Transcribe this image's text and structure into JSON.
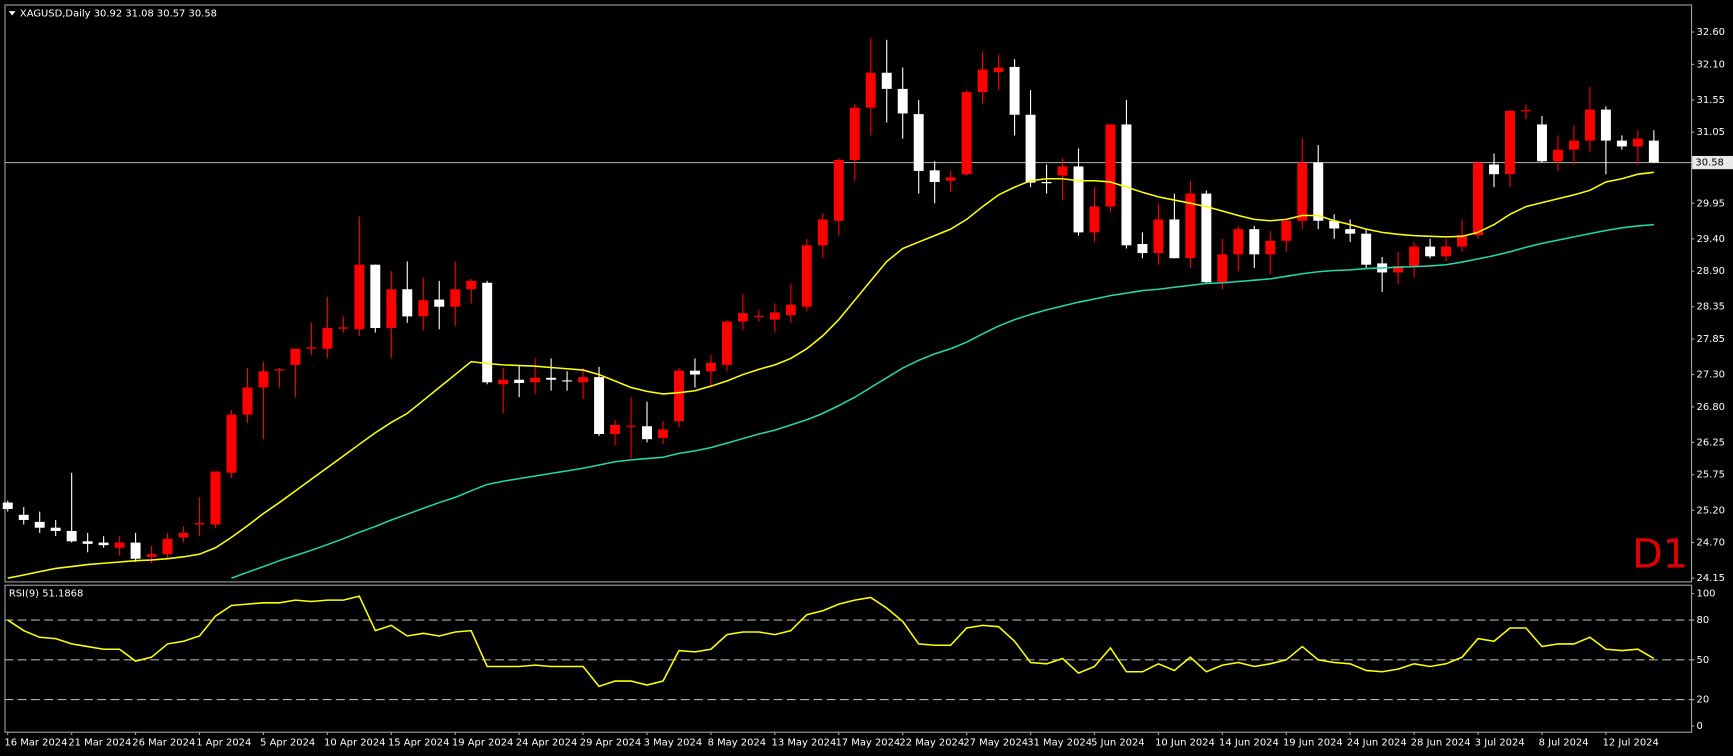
{
  "chart_data": [
    {
      "type": "candlestick",
      "title": "XAGUSD,Daily  30.92 31.08 30.57 30.58",
      "annotation": "D1",
      "last_price": 30.58,
      "up_color": "#ff0000",
      "down_color": "#ffffff",
      "categories": [
        "16 Mar 2024",
        null,
        null,
        null,
        "21 Mar 2024",
        null,
        null,
        null,
        "26 Mar 2024",
        null,
        null,
        null,
        "1 Apr 2024",
        null,
        null,
        null,
        "5 Apr 2024",
        null,
        null,
        null,
        "10 Apr 2024",
        null,
        null,
        null,
        "15 Apr 2024",
        null,
        null,
        null,
        "19 Apr 2024",
        null,
        null,
        null,
        "24 Apr 2024",
        null,
        null,
        null,
        "29 Apr 2024",
        null,
        null,
        null,
        "3 May 2024",
        null,
        null,
        null,
        "8 May 2024",
        null,
        null,
        null,
        "13 May 2024",
        null,
        null,
        null,
        "17 May 2024",
        null,
        null,
        null,
        "22 May 2024",
        null,
        null,
        null,
        "27 May 2024",
        null,
        null,
        null,
        "31 May 2024",
        null,
        null,
        null,
        "5 Jun 2024",
        null,
        null,
        null,
        "10 Jun 2024",
        null,
        null,
        null,
        "14 Jun 2024",
        null,
        null,
        null,
        "19 Jun 2024",
        null,
        null,
        null,
        "24 Jun 2024",
        null,
        null,
        null,
        "28 Jun 2024",
        null,
        null,
        null,
        "3 Jul 2024",
        null,
        null,
        null,
        "8 Jul 2024",
        null,
        null,
        null,
        "12 Jul 2024",
        null,
        null,
        null
      ],
      "open": [
        25.32,
        25.13,
        25.02,
        24.93,
        24.88,
        24.72,
        24.7,
        24.62,
        24.7,
        24.48,
        24.52,
        24.78,
        24.98,
        24.98,
        25.78,
        26.68,
        27.1,
        27.36,
        27.45,
        27.7,
        27.7,
        28.01,
        28.0,
        29.0,
        28.02,
        28.62,
        28.2,
        28.46,
        28.35,
        28.62,
        28.72,
        27.15,
        27.22,
        27.18,
        27.25,
        27.21,
        27.18,
        27.26,
        26.38,
        26.5,
        26.5,
        26.32,
        26.58,
        27.36,
        27.35,
        27.45,
        28.12,
        28.2,
        28.15,
        28.22,
        28.35,
        29.3,
        29.68,
        30.62,
        31.43,
        31.97,
        31.72,
        31.33,
        30.46,
        30.3,
        30.4,
        31.67,
        31.98,
        32.06,
        31.32,
        30.28,
        30.38,
        30.52,
        29.5,
        29.9,
        31.17,
        29.32,
        29.18,
        29.7,
        29.1,
        30.1,
        28.73,
        29.16,
        29.55,
        29.16,
        29.37,
        29.68,
        30.58,
        29.68,
        29.55,
        29.48,
        29.02,
        28.88,
        28.98,
        29.28,
        29.13,
        29.28,
        29.46,
        30.55,
        30.4,
        31.38,
        31.17,
        30.6,
        30.78,
        30.92,
        31.4,
        30.92,
        30.83,
        30.92
      ],
      "high": [
        25.35,
        25.25,
        25.18,
        25.05,
        25.78,
        24.85,
        24.8,
        24.8,
        24.85,
        24.65,
        24.85,
        24.95,
        25.4,
        25.8,
        26.75,
        27.4,
        27.5,
        27.4,
        27.7,
        28.1,
        28.5,
        28.2,
        29.75,
        29.0,
        28.9,
        29.05,
        28.8,
        28.75,
        29.05,
        28.78,
        28.75,
        27.4,
        27.45,
        27.55,
        27.55,
        27.35,
        27.4,
        27.42,
        26.6,
        26.95,
        26.88,
        26.58,
        27.4,
        27.55,
        27.6,
        28.15,
        28.55,
        28.3,
        28.4,
        28.7,
        29.4,
        29.8,
        30.65,
        31.48,
        32.5,
        32.48,
        32.05,
        31.55,
        30.6,
        30.45,
        31.7,
        32.3,
        32.25,
        32.18,
        31.7,
        30.55,
        30.65,
        30.8,
        30.2,
        31.18,
        31.55,
        29.5,
        29.95,
        30.1,
        30.3,
        30.15,
        29.4,
        29.6,
        29.6,
        29.52,
        29.7,
        30.95,
        30.85,
        29.78,
        29.7,
        29.55,
        29.12,
        29.2,
        29.35,
        29.4,
        29.4,
        29.7,
        30.6,
        30.72,
        31.4,
        31.48,
        31.3,
        31.0,
        31.15,
        31.75,
        31.45,
        31.0,
        31.08,
        31.08
      ],
      "low": [
        25.18,
        24.98,
        24.85,
        24.8,
        24.7,
        24.55,
        24.62,
        24.5,
        24.4,
        24.38,
        24.45,
        24.7,
        24.8,
        24.92,
        25.7,
        26.55,
        26.3,
        27.1,
        26.95,
        27.6,
        27.55,
        27.95,
        27.9,
        27.95,
        27.55,
        28.1,
        27.98,
        28.0,
        28.05,
        28.4,
        27.15,
        26.7,
        26.95,
        27.0,
        27.05,
        27.05,
        26.92,
        26.35,
        26.2,
        26.0,
        26.25,
        26.22,
        26.48,
        27.1,
        27.1,
        27.35,
        28.0,
        28.12,
        27.95,
        28.1,
        28.28,
        29.1,
        29.45,
        30.3,
        31.0,
        31.2,
        30.95,
        30.1,
        29.95,
        30.12,
        30.38,
        31.48,
        31.7,
        31.0,
        30.2,
        30.1,
        30.0,
        29.45,
        29.35,
        29.82,
        29.25,
        29.1,
        29.0,
        29.1,
        28.95,
        28.7,
        28.62,
        28.9,
        28.95,
        28.85,
        29.2,
        29.55,
        29.55,
        29.4,
        29.35,
        28.95,
        28.58,
        28.7,
        28.8,
        29.1,
        29.05,
        29.2,
        29.4,
        30.2,
        30.2,
        31.25,
        30.58,
        30.45,
        30.55,
        30.75,
        30.4,
        30.78,
        30.55,
        30.57
      ],
      "close": [
        25.22,
        25.05,
        24.93,
        24.88,
        24.72,
        24.68,
        24.66,
        24.7,
        24.45,
        24.52,
        24.76,
        24.85,
        25.0,
        25.8,
        26.68,
        27.1,
        27.35,
        27.38,
        27.7,
        27.72,
        28.02,
        28.03,
        29.0,
        28.02,
        28.62,
        28.2,
        28.45,
        28.35,
        28.62,
        28.75,
        27.18,
        27.22,
        27.17,
        27.25,
        27.22,
        27.2,
        27.26,
        26.38,
        26.52,
        26.51,
        26.3,
        26.45,
        27.36,
        27.3,
        27.48,
        28.12,
        28.25,
        28.21,
        28.26,
        28.38,
        29.3,
        29.7,
        30.62,
        31.43,
        31.97,
        31.72,
        31.34,
        30.45,
        30.28,
        30.35,
        31.67,
        32.02,
        32.05,
        31.32,
        30.27,
        30.26,
        30.52,
        29.5,
        29.9,
        31.17,
        29.3,
        29.18,
        29.7,
        29.1,
        30.1,
        28.73,
        29.16,
        29.55,
        29.16,
        29.37,
        29.68,
        30.58,
        29.68,
        29.56,
        29.48,
        29.0,
        28.88,
        28.98,
        29.28,
        29.13,
        29.28,
        29.46,
        30.58,
        30.4,
        31.38,
        31.39,
        30.6,
        30.78,
        30.92,
        31.4,
        30.92,
        30.83,
        30.95,
        30.58
      ],
      "series": [
        {
          "color": "#ffff00",
          "values": [
            24.15,
            24.2,
            24.25,
            24.3,
            24.33,
            24.36,
            24.38,
            24.4,
            24.42,
            24.43,
            24.45,
            24.48,
            24.52,
            24.62,
            24.78,
            24.96,
            25.15,
            25.32,
            25.5,
            25.68,
            25.86,
            26.04,
            26.22,
            26.4,
            26.56,
            26.7,
            26.9,
            27.1,
            27.3,
            27.5,
            27.47,
            27.45,
            27.44,
            27.43,
            27.41,
            27.39,
            27.37,
            27.3,
            27.2,
            27.1,
            27.04,
            27.0,
            27.02,
            27.05,
            27.12,
            27.2,
            27.3,
            27.38,
            27.45,
            27.55,
            27.7,
            27.9,
            28.15,
            28.45,
            28.75,
            29.05,
            29.25,
            29.35,
            29.45,
            29.55,
            29.7,
            29.9,
            30.08,
            30.2,
            30.3,
            30.33,
            30.33,
            30.3,
            30.3,
            30.28,
            30.2,
            30.12,
            30.05,
            30.0,
            29.95,
            29.9,
            29.83,
            29.76,
            29.7,
            29.68,
            29.7,
            29.76,
            29.76,
            29.68,
            29.62,
            29.55,
            29.5,
            29.47,
            29.45,
            29.44,
            29.43,
            29.44,
            29.5,
            29.62,
            29.78,
            29.9,
            29.96,
            30.02,
            30.08,
            30.15,
            30.28,
            30.33,
            30.4,
            30.43
          ]
        },
        {
          "color": "#20d8a8",
          "values": [
            null,
            null,
            null,
            null,
            null,
            null,
            null,
            null,
            null,
            null,
            null,
            null,
            null,
            null,
            24.15,
            24.24,
            24.33,
            24.42,
            24.5,
            24.58,
            24.67,
            24.76,
            24.86,
            24.95,
            25.05,
            25.14,
            25.23,
            25.32,
            25.4,
            25.5,
            25.6,
            25.65,
            25.69,
            25.73,
            25.77,
            25.81,
            25.85,
            25.9,
            25.95,
            25.98,
            26.0,
            26.02,
            26.08,
            26.12,
            26.17,
            26.24,
            26.31,
            26.38,
            26.44,
            26.52,
            26.6,
            26.7,
            26.82,
            26.95,
            27.1,
            27.25,
            27.4,
            27.52,
            27.62,
            27.7,
            27.8,
            27.93,
            28.05,
            28.15,
            28.23,
            28.3,
            28.36,
            28.42,
            28.47,
            28.52,
            28.56,
            28.6,
            28.62,
            28.65,
            28.68,
            28.71,
            28.72,
            28.74,
            28.76,
            28.78,
            28.82,
            28.86,
            28.89,
            28.91,
            28.92,
            28.94,
            28.95,
            28.96,
            28.97,
            28.98,
            29.0,
            29.04,
            29.09,
            29.14,
            29.2,
            29.27,
            29.33,
            29.38,
            29.43,
            29.48,
            29.53,
            29.57,
            29.6,
            29.62
          ]
        }
      ],
      "ylim": [
        24.1,
        33.01
      ],
      "yticks": [
        {
          "value": 32.6,
          "label": "32.60"
        },
        {
          "value": 32.1,
          "label": "32.10"
        },
        31.55,
        31.05,
        29.95,
        {
          "value": 29.4,
          "label": "29.40"
        },
        {
          "value": 28.9,
          "label": "28.90"
        },
        28.35,
        27.85,
        {
          "value": 27.3,
          "label": "27.30"
        },
        {
          "value": 26.8,
          "label": "26.80"
        },
        26.25,
        25.75,
        {
          "value": 25.2,
          "label": "25.20"
        },
        {
          "value": 24.7,
          "label": "24.70"
        },
        24.15
      ],
      "grid": false
    },
    {
      "type": "line",
      "title": "RSI(9) 51.1868",
      "color": "#ffff00",
      "values": [
        80,
        72,
        67,
        66,
        62,
        60,
        58,
        58,
        49,
        52,
        62,
        64,
        68,
        83,
        91,
        92,
        93,
        93,
        95,
        94,
        95,
        95,
        98,
        72,
        76,
        68,
        70,
        68,
        71,
        72,
        45,
        45,
        45,
        46,
        45,
        45,
        45,
        30,
        34,
        34,
        31,
        34,
        57,
        56,
        58,
        69,
        71,
        71,
        69,
        72,
        84,
        87,
        92,
        95,
        97,
        89,
        79,
        62,
        61,
        61,
        74,
        76,
        75,
        64,
        48,
        47,
        51,
        40,
        45,
        59,
        41,
        41,
        47,
        42,
        52,
        41,
        46,
        48,
        45,
        47,
        50,
        60,
        50,
        48,
        47,
        42,
        41,
        43,
        47,
        45,
        47,
        52,
        66,
        64,
        74,
        74,
        60,
        62,
        62,
        67,
        58,
        57,
        58,
        51
      ],
      "ylim": [
        -4.2,
        106.7
      ],
      "yticks": [
        100,
        80,
        50,
        20,
        0
      ],
      "levels": [
        80,
        50,
        20
      ]
    }
  ]
}
